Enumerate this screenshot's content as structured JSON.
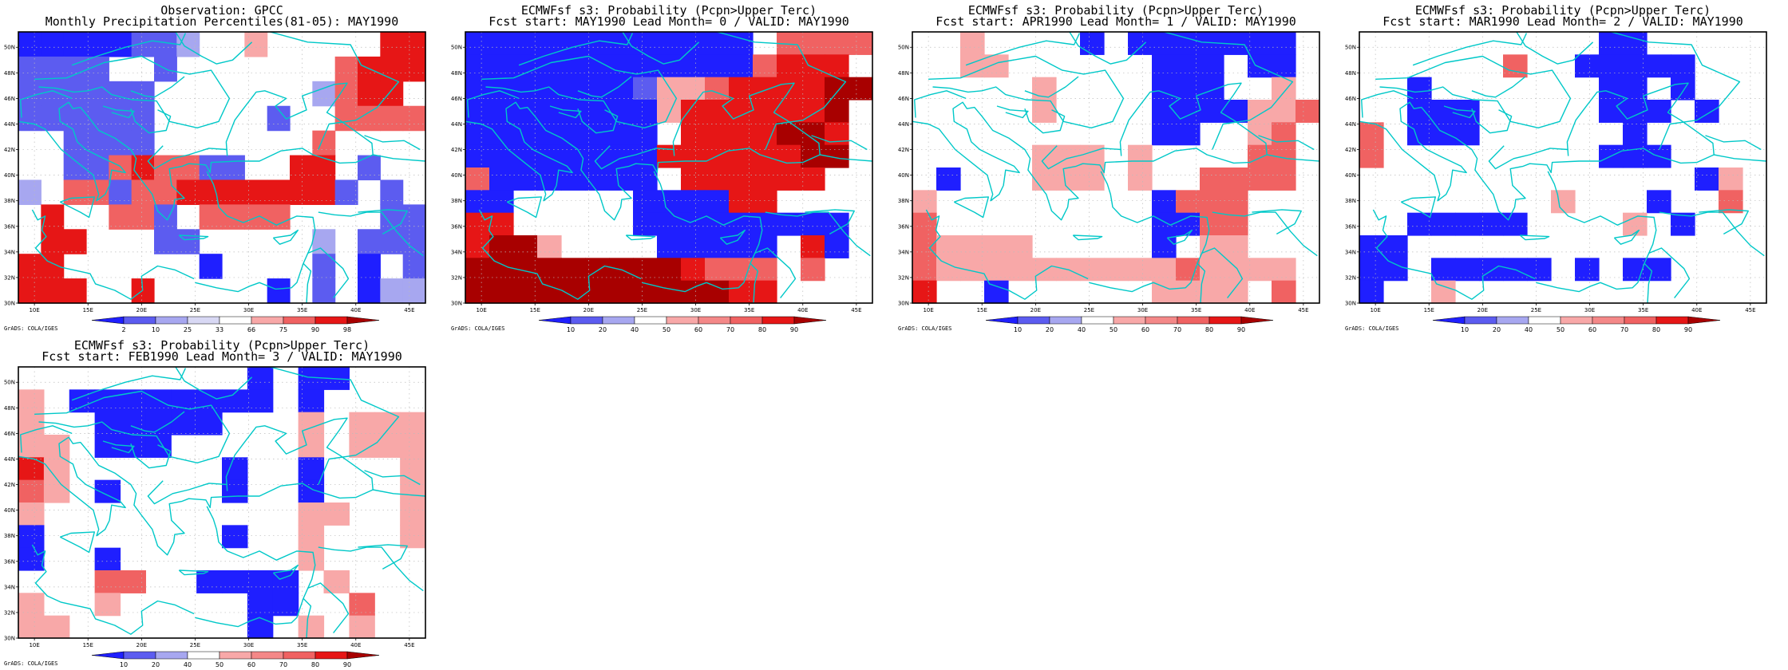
{
  "figure": {
    "colors": {
      "coast": "#00c8c8",
      "grid": "#bbbbbb",
      "blue_strong": "#1f1fff",
      "blue_mid": "#5c5cf0",
      "blue_light": "#a7a7f0",
      "red_light": "#f8a8a8",
      "red_mid": "#f06262",
      "red_strong": "#e61616",
      "red_dark": "#a80000"
    },
    "credit": "GrADS: COLA/IGES",
    "panels": [
      {
        "title_line1": "Observation: GPCC",
        "title_line2": "Monthly Precipitation Percentiles(81-05): MAY1990",
        "colorbar_labels": [
          "2",
          "10",
          "25",
          "33",
          "66",
          "75",
          "90",
          "98"
        ]
      },
      {
        "title_line1": "ECMWFsf s3: Probability (Pcpn>Upper Terc)",
        "title_line2": "Fcst start: MAY1990  Lead Month= 0 / VALID: MAY1990",
        "colorbar_labels": [
          "10",
          "20",
          "40",
          "50",
          "60",
          "70",
          "80",
          "90"
        ]
      },
      {
        "title_line1": "ECMWFsf s3: Probability (Pcpn>Upper Terc)",
        "title_line2": "Fcst start: APR1990  Lead Month= 1 / VALID: MAY1990",
        "colorbar_labels": [
          "10",
          "20",
          "40",
          "50",
          "60",
          "70",
          "80",
          "90"
        ]
      },
      {
        "title_line1": "ECMWFsf s3: Probability (Pcpn>Upper Terc)",
        "title_line2": "Fcst start: MAR1990  Lead Month= 2 / VALID: MAY1990",
        "colorbar_labels": [
          "10",
          "20",
          "40",
          "50",
          "60",
          "70",
          "80",
          "90"
        ]
      },
      {
        "title_line1": "ECMWFsf s3: Probability (Pcpn>Upper Terc)",
        "title_line2": "Fcst start: FEB1990  Lead Month= 3 / VALID: MAY1990",
        "colorbar_labels": [
          "10",
          "20",
          "40",
          "50",
          "60",
          "70",
          "80",
          "90"
        ]
      }
    ]
  },
  "chart_data": [
    {
      "type": "heatmap",
      "title": "Observation: GPCC\nMonthly Precipitation Percentiles(81-05): MAY1990",
      "x_ticks": [
        "10E",
        "15E",
        "20E",
        "25E",
        "30E",
        "35E",
        "40E",
        "45E"
      ],
      "y_ticks": [
        "30N",
        "32N",
        "34N",
        "36N",
        "38N",
        "40N",
        "42N",
        "44N",
        "46N",
        "48N",
        "50N"
      ],
      "lon_range": [
        8.5,
        46.5
      ],
      "lat_range": [
        30,
        51.2
      ],
      "colorbar_levels": [
        "2",
        "10",
        "25",
        "33",
        "66",
        "75",
        "90",
        "98"
      ],
      "cell_size_deg": 2.5,
      "level_colors": [
        "blue_strong",
        "blue_mid",
        "blue_light",
        "red_light",
        "red_mid",
        "red_strong"
      ],
      "grid_rows_top_to_bottom": [
        "00000112__3_____55",
        "1111__1_______4555",
        "111111_______2455",
        "111111_____1__4444",
        "__1111_______4____",
        "__11454411__55_1__",
        "2_4414455555551_1",
        "_5__441_4444____11",
        "_55___11_____2_111",
        "55______0____1_0_1",
        "555__5_____0_1_022"
      ]
    },
    {
      "type": "heatmap",
      "title": "ECMWFsf s3: Probability (Pcpn>Upper Terc)\nFcst start: MAY1990  Lead Month= 0 / VALID: MAY1990",
      "x_ticks": [
        "10E",
        "15E",
        "20E",
        "25E",
        "30E",
        "35E",
        "40E",
        "45E"
      ],
      "y_ticks": [
        "30N",
        "32N",
        "34N",
        "36N",
        "38N",
        "40N",
        "42N",
        "44N",
        "46N",
        "48N",
        "50N"
      ],
      "lon_range": [
        8.5,
        46.5
      ],
      "lat_range": [
        30,
        51.2
      ],
      "colorbar_levels": [
        "10",
        "20",
        "40",
        "50",
        "60",
        "70",
        "80",
        "90"
      ],
      "cell_size_deg": 2.5,
      "level_colors": [
        "blue_strong",
        "blue_mid",
        "blue_light",
        "red_light",
        "red_mid",
        "red_strong",
        "red_dark"
      ],
      "grid_rows_top_to_bottom": [
        "000000000000_4444",
        "0000000000004555",
        "00000001334555566",
        "0000000035555556",
        "00000000_5555665",
        "0000000055555566",
        "40000000_555555_",
        "00_____000055___",
        "55_____000000000",
        "5663____00000_50",
        "6666666665444_4_",
        "6666666666655___"
      ]
    },
    {
      "type": "heatmap",
      "title": "ECMWFsf s3: Probability (Pcpn>Upper Terc)\nFcst start: APR1990  Lead Month= 1 / VALID: MAY1990",
      "x_ticks": [
        "10E",
        "15E",
        "20E",
        "25E",
        "30E",
        "35E",
        "40E",
        "45E"
      ],
      "y_ticks": [
        "30N",
        "32N",
        "34N",
        "36N",
        "38N",
        "40N",
        "42N",
        "44N",
        "46N",
        "48N",
        "50N"
      ],
      "lon_range": [
        8.5,
        46.5
      ],
      "lat_range": [
        30,
        51.2
      ],
      "colorbar_levels": [
        "10",
        "20",
        "40",
        "50",
        "60",
        "70",
        "80",
        "90"
      ],
      "cell_size_deg": 2.5,
      "level_colors": [
        "blue_strong",
        "blue_mid",
        "blue_light",
        "red_light",
        "red_mid",
        "red_strong",
        "red_dark"
      ],
      "grid_rows_top_to_bottom": [
        "__3____0_0000000",
        "__33______000_00",
        "_____3____000__3",
        "_____3____0000334",
        "__________00__34",
        "_____333_3____44",
        "_0___333_3__4444",
        "3_________0444__",
        "4_________0044__",
        "43333_____0_33__",
        "4333333333343333",
        "5__0______3333_4"
      ]
    },
    {
      "type": "heatmap",
      "title": "ECMWFsf s3: Probability (Pcpn>Upper Terc)\nFcst start: MAR1990  Lead Month= 2 / VALID: MAY1990",
      "x_ticks": [
        "10E",
        "15E",
        "20E",
        "25E",
        "30E",
        "35E",
        "40E",
        "45E"
      ],
      "y_ticks": [
        "30N",
        "32N",
        "34N",
        "36N",
        "38N",
        "40N",
        "42N",
        "44N",
        "46N",
        "48N",
        "50N"
      ],
      "lon_range": [
        8.5,
        46.5
      ],
      "lat_range": [
        30,
        51.2
      ],
      "colorbar_levels": [
        "10",
        "20",
        "40",
        "50",
        "60",
        "70",
        "80",
        "90"
      ],
      "cell_size_deg": 2.5,
      "level_colors": [
        "blue_strong",
        "blue_mid",
        "blue_light",
        "red_light",
        "red_mid",
        "red_strong",
        "red_dark"
      ],
      "grid_rows_top_to_bottom": [
        "__________00____",
        "______4__00000__",
        "__0_______00_0__",
        "__000_____000_0_",
        "4_000______0____",
        "4_________000___",
        "______________03",
        "________3___0__4",
        "__00000____3_0__",
        "00______________",
        "00_00000_0_00___",
        "0__3_____________"
      ]
    },
    {
      "type": "heatmap",
      "title": "ECMWFsf s3: Probability (Pcpn>Upper Terc)\nFcst start: FEB1990  Lead Month= 3 / VALID: MAY1990",
      "x_ticks": [
        "10E",
        "15E",
        "20E",
        "25E",
        "30E",
        "35E",
        "40E",
        "45E"
      ],
      "y_ticks": [
        "30N",
        "32N",
        "34N",
        "36N",
        "38N",
        "40N",
        "42N",
        "44N",
        "46N",
        "48N",
        "50N"
      ],
      "lon_range": [
        8.5,
        46.5
      ],
      "lat_range": [
        30,
        51.2
      ],
      "colorbar_levels": [
        "10",
        "20",
        "40",
        "50",
        "60",
        "70",
        "80",
        "90"
      ],
      "cell_size_deg": 2.5,
      "level_colors": [
        "blue_strong",
        "blue_mid",
        "blue_light",
        "red_light",
        "red_mid",
        "red_strong",
        "red_dark"
      ],
      "grid_rows_top_to_bottom": [
        "_________0_00___",
        "3_00000000_0____",
        "3__00000___3_333",
        "33_000_____3_333",
        "53______0__0___3",
        "43_0____0__0___3",
        "3__________33__3",
        "0_______0__3___3",
        "0__0_______3____",
        "___44__0000_3___",
        "3__3_____00__4__",
        "33_______0_3_3__"
      ]
    }
  ]
}
